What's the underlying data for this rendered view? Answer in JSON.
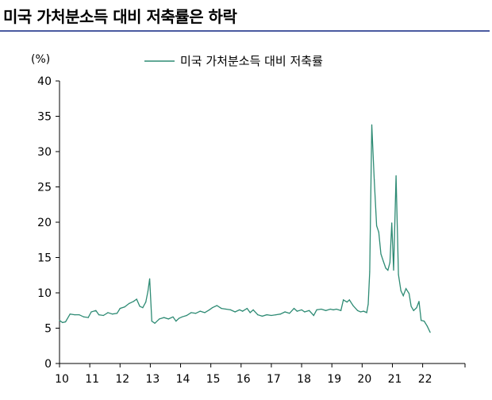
{
  "title": "미국 가처분소득 대비 저축률은 하락",
  "chart_data": {
    "type": "line",
    "unit_label": "(%)",
    "ylim": [
      0,
      40
    ],
    "yticks": [
      "0",
      "5",
      "10",
      "15",
      "20",
      "25",
      "30",
      "35",
      "40"
    ],
    "xlim": [
      2010,
      2023.4
    ],
    "xticks": [
      {
        "label": "10",
        "x": 2010
      },
      {
        "label": "11",
        "x": 2011
      },
      {
        "label": "12",
        "x": 2012
      },
      {
        "label": "13",
        "x": 2013
      },
      {
        "label": "14",
        "x": 2014
      },
      {
        "label": "15",
        "x": 2015
      },
      {
        "label": "16",
        "x": 2016
      },
      {
        "label": "17",
        "x": 2017
      },
      {
        "label": "18",
        "x": 2018
      },
      {
        "label": "19",
        "x": 2019
      },
      {
        "label": "20",
        "x": 2020
      },
      {
        "label": "21",
        "x": 2021
      },
      {
        "label": "22",
        "x": 2022
      }
    ],
    "legend_position": "top-center",
    "grid": false,
    "colors": {
      "line": "#2e8b74",
      "axis": "#000000"
    },
    "series": [
      {
        "name": "미국 가처분소득 대비 저축률",
        "points": [
          [
            2010.0,
            6.1
          ],
          [
            2010.1,
            5.8
          ],
          [
            2010.2,
            5.9
          ],
          [
            2010.35,
            7.0
          ],
          [
            2010.5,
            6.9
          ],
          [
            2010.65,
            6.9
          ],
          [
            2010.8,
            6.6
          ],
          [
            2010.95,
            6.5
          ],
          [
            2011.05,
            7.3
          ],
          [
            2011.2,
            7.5
          ],
          [
            2011.3,
            6.9
          ],
          [
            2011.45,
            6.8
          ],
          [
            2011.6,
            7.2
          ],
          [
            2011.75,
            7.0
          ],
          [
            2011.9,
            7.1
          ],
          [
            2012.0,
            7.8
          ],
          [
            2012.15,
            8.0
          ],
          [
            2012.3,
            8.5
          ],
          [
            2012.45,
            8.8
          ],
          [
            2012.55,
            9.1
          ],
          [
            2012.65,
            8.1
          ],
          [
            2012.75,
            7.9
          ],
          [
            2012.85,
            8.7
          ],
          [
            2012.92,
            10.2
          ],
          [
            2012.98,
            12.0
          ],
          [
            2013.05,
            6.0
          ],
          [
            2013.15,
            5.7
          ],
          [
            2013.3,
            6.3
          ],
          [
            2013.45,
            6.5
          ],
          [
            2013.6,
            6.3
          ],
          [
            2013.75,
            6.6
          ],
          [
            2013.85,
            6.0
          ],
          [
            2013.95,
            6.4
          ],
          [
            2014.05,
            6.6
          ],
          [
            2014.2,
            6.8
          ],
          [
            2014.35,
            7.2
          ],
          [
            2014.5,
            7.1
          ],
          [
            2014.65,
            7.4
          ],
          [
            2014.8,
            7.2
          ],
          [
            2014.95,
            7.6
          ],
          [
            2015.05,
            7.9
          ],
          [
            2015.2,
            8.2
          ],
          [
            2015.35,
            7.8
          ],
          [
            2015.5,
            7.7
          ],
          [
            2015.65,
            7.6
          ],
          [
            2015.8,
            7.3
          ],
          [
            2015.95,
            7.6
          ],
          [
            2016.05,
            7.4
          ],
          [
            2016.2,
            7.8
          ],
          [
            2016.3,
            7.2
          ],
          [
            2016.4,
            7.6
          ],
          [
            2016.55,
            6.9
          ],
          [
            2016.7,
            6.7
          ],
          [
            2016.85,
            6.9
          ],
          [
            2017.0,
            6.8
          ],
          [
            2017.15,
            6.9
          ],
          [
            2017.3,
            7.0
          ],
          [
            2017.45,
            7.3
          ],
          [
            2017.6,
            7.1
          ],
          [
            2017.75,
            7.8
          ],
          [
            2017.85,
            7.4
          ],
          [
            2018.0,
            7.6
          ],
          [
            2018.1,
            7.3
          ],
          [
            2018.25,
            7.5
          ],
          [
            2018.4,
            6.8
          ],
          [
            2018.5,
            7.6
          ],
          [
            2018.65,
            7.7
          ],
          [
            2018.8,
            7.5
          ],
          [
            2018.95,
            7.7
          ],
          [
            2019.05,
            7.6
          ],
          [
            2019.15,
            7.7
          ],
          [
            2019.3,
            7.5
          ],
          [
            2019.38,
            9.0
          ],
          [
            2019.5,
            8.7
          ],
          [
            2019.58,
            9.0
          ],
          [
            2019.7,
            8.2
          ],
          [
            2019.85,
            7.5
          ],
          [
            2019.95,
            7.3
          ],
          [
            2020.05,
            7.4
          ],
          [
            2020.15,
            7.2
          ],
          [
            2020.2,
            8.4
          ],
          [
            2020.25,
            13.0
          ],
          [
            2020.32,
            33.8
          ],
          [
            2020.4,
            26.0
          ],
          [
            2020.48,
            19.5
          ],
          [
            2020.55,
            18.6
          ],
          [
            2020.62,
            15.5
          ],
          [
            2020.7,
            14.5
          ],
          [
            2020.78,
            13.5
          ],
          [
            2020.85,
            13.2
          ],
          [
            2020.92,
            14.3
          ],
          [
            2020.98,
            19.9
          ],
          [
            2021.04,
            13.2
          ],
          [
            2021.12,
            26.6
          ],
          [
            2021.2,
            12.6
          ],
          [
            2021.28,
            10.3
          ],
          [
            2021.36,
            9.6
          ],
          [
            2021.45,
            10.6
          ],
          [
            2021.55,
            9.9
          ],
          [
            2021.62,
            8.1
          ],
          [
            2021.7,
            7.5
          ],
          [
            2021.8,
            7.9
          ],
          [
            2021.88,
            8.8
          ],
          [
            2021.95,
            6.1
          ],
          [
            2022.05,
            6.0
          ],
          [
            2022.15,
            5.3
          ],
          [
            2022.25,
            4.4
          ]
        ]
      }
    ]
  }
}
